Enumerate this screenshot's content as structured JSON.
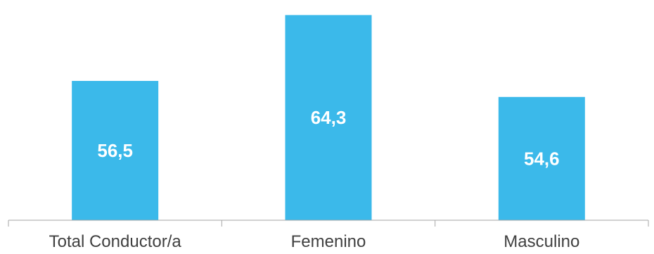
{
  "chart_data": {
    "type": "bar",
    "categories": [
      "Total Conductor/a",
      "Femenino",
      "Masculino"
    ],
    "values": [
      56.5,
      64.3,
      54.6
    ],
    "value_labels": [
      "56,5",
      "64,3",
      "54,6"
    ],
    "title": "",
    "xlabel": "",
    "ylabel": "",
    "ylim": [
      40,
      65
    ],
    "grid": false,
    "legend": "none",
    "bar_color": "#3bb9ea",
    "label_color": "#ffffff",
    "axis_color": "#a6a6a6",
    "text_color": "#404040"
  }
}
